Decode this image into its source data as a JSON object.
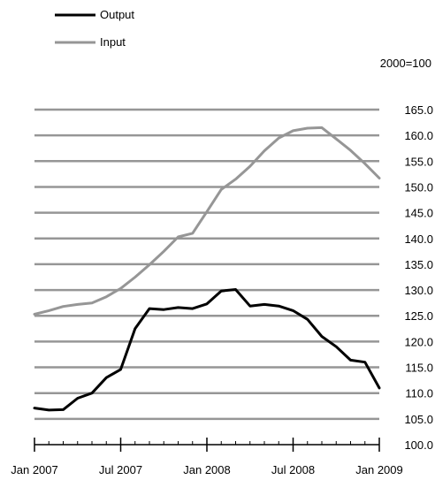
{
  "chart_data": {
    "type": "line",
    "unit_note": "2000=100",
    "x_ticks": [
      "Jan 2007",
      "Jul 2007",
      "Jan 2008",
      "Jul 2008",
      "Jan 2009"
    ],
    "x_tick_positions": [
      0,
      6,
      12,
      18,
      24
    ],
    "x": [
      0,
      1,
      2,
      3,
      4,
      5,
      6,
      7,
      8,
      9,
      10,
      11,
      12,
      13,
      14,
      15,
      16,
      17,
      18,
      19,
      20,
      21,
      22,
      23,
      24
    ],
    "ylim": [
      100,
      165
    ],
    "y_ticks": [
      "100.0",
      "105.0",
      "110.0",
      "115.0",
      "120.0",
      "125.0",
      "130.0",
      "135.0",
      "140.0",
      "145.0",
      "150.0",
      "155.0",
      "160.0",
      "165.0"
    ],
    "grid": true,
    "legend_position": "top-left",
    "series": [
      {
        "name": "Output",
        "color": "#000000",
        "values": [
          107.1,
          106.7,
          106.8,
          109.0,
          110.0,
          113.0,
          114.6,
          122.5,
          126.4,
          126.2,
          126.6,
          126.4,
          127.3,
          129.8,
          130.1,
          126.9,
          127.2,
          126.9,
          126.0,
          124.3,
          121.0,
          119.0,
          116.4,
          116.0,
          111.0
        ]
      },
      {
        "name": "Input",
        "color": "#969696",
        "values": [
          125.3,
          126.0,
          126.8,
          127.2,
          127.5,
          128.7,
          130.3,
          132.5,
          134.9,
          137.5,
          140.3,
          141.0,
          145.2,
          149.5,
          151.5,
          154.0,
          157.0,
          159.5,
          160.9,
          161.4,
          161.5,
          159.3,
          157.1,
          154.5,
          151.7
        ]
      }
    ]
  }
}
